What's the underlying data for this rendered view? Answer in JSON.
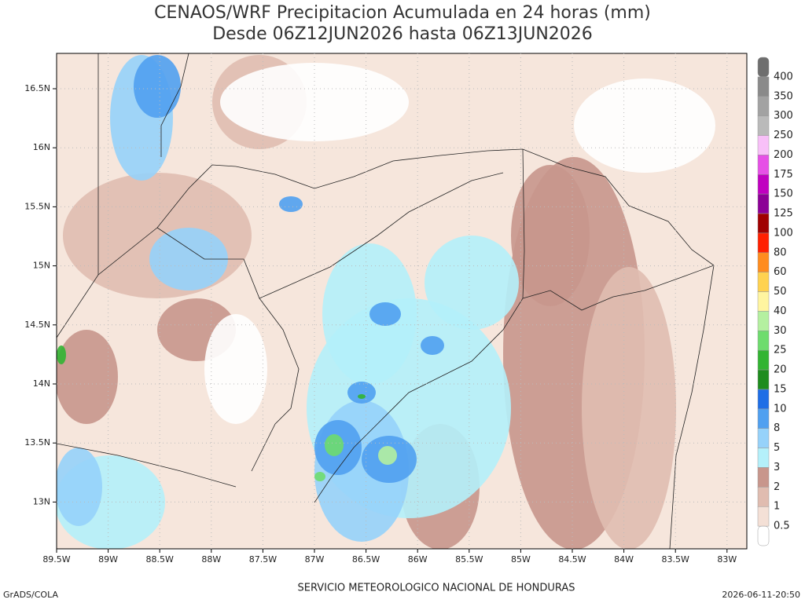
{
  "header": {
    "title_line1": "CENAOS/WRF Precipitacion Acumulada en 24 horas (mm)",
    "title_line2": "Desde 06Z12JUN2026 hasta 06Z13JUN2026"
  },
  "map": {
    "lon_ticks": [
      "89.5W",
      "89W",
      "88.5W",
      "88W",
      "87.5W",
      "87W",
      "86.5W",
      "86W",
      "85.5W",
      "85W",
      "84.5W",
      "84W",
      "83.5W",
      "83W"
    ],
    "lat_ticks": [
      "16.5N",
      "16N",
      "15.5N",
      "15N",
      "14.5N",
      "14N",
      "13.5N",
      "13N"
    ]
  },
  "colorbar": {
    "labels": [
      "400",
      "350",
      "300",
      "250",
      "200",
      "175",
      "150",
      "125",
      "100",
      "80",
      "60",
      "50",
      "40",
      "30",
      "25",
      "20",
      "15",
      "10",
      "8",
      "5",
      "3",
      "2",
      "1",
      "0.5"
    ],
    "colors": [
      "#6e6e6e",
      "#8a8a8a",
      "#a2a2a2",
      "#bababa",
      "#f8c0f8",
      "#e650e6",
      "#c000c0",
      "#8c0096",
      "#a00000",
      "#ff2000",
      "#ff8c1e",
      "#ffd250",
      "#fff5a0",
      "#b4f0a0",
      "#6edc6e",
      "#32b432",
      "#1e8c1e",
      "#1e6ee6",
      "#50a0f0",
      "#96d2fa",
      "#b4f0fa",
      "#c8968c",
      "#e0bcb0",
      "#f4e0d6",
      "#ffffff"
    ]
  },
  "footer": {
    "left": "GrADS/COLA",
    "center": "SERVICIO METEOROLOGICO NACIONAL DE HONDURAS",
    "right": "2026-06-11-20:50"
  }
}
